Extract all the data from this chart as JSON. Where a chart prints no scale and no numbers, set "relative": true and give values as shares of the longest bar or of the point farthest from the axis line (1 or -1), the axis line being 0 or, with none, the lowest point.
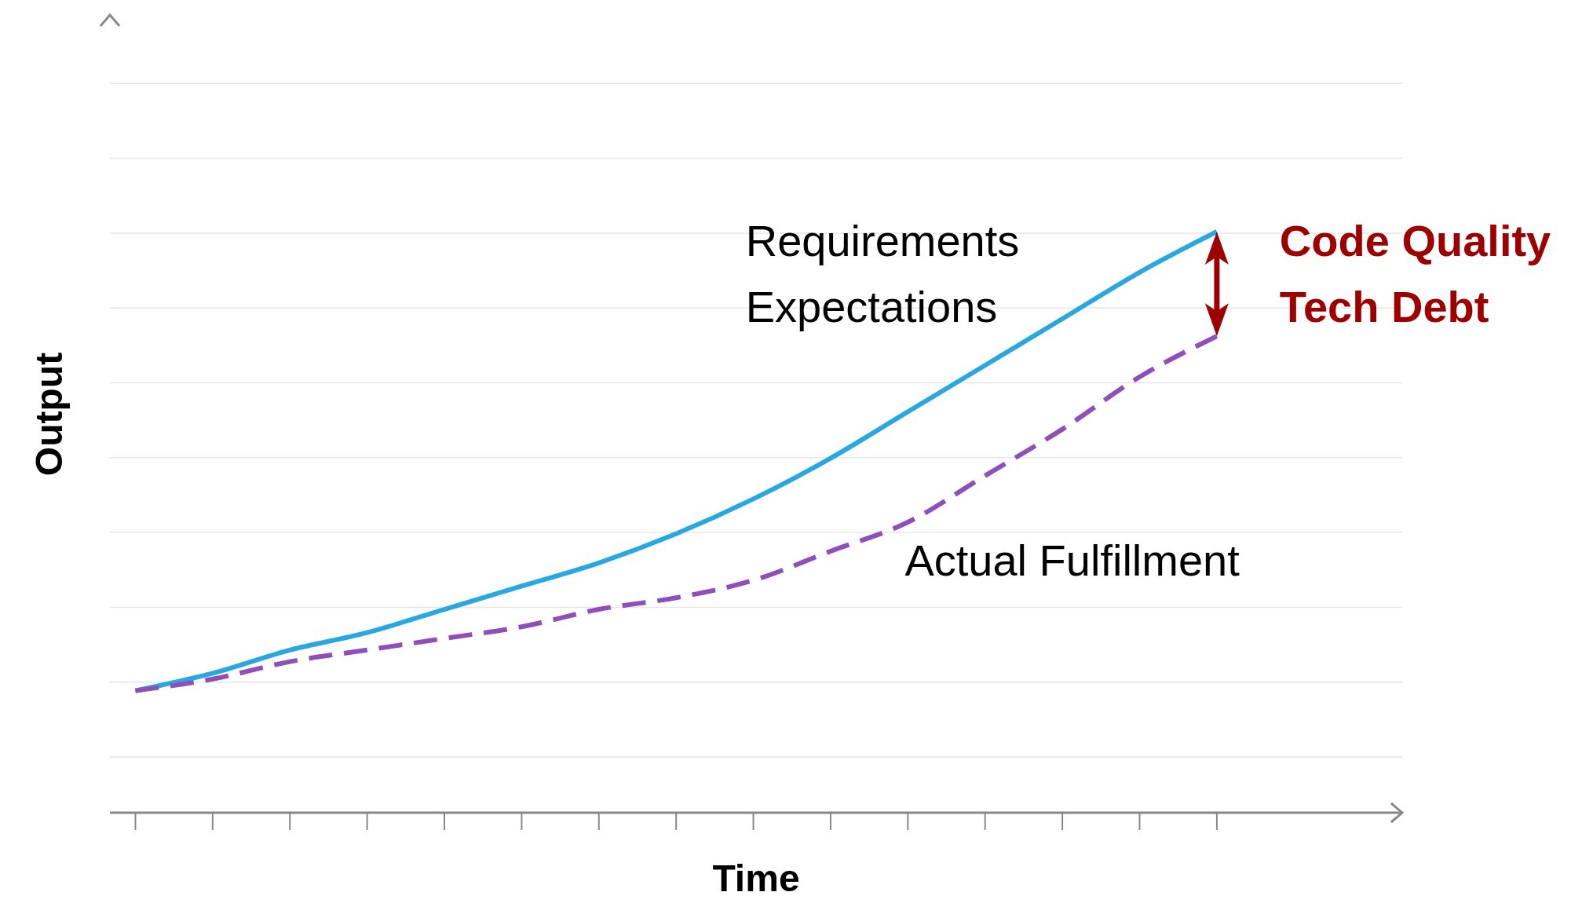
{
  "chart_data": {
    "type": "line",
    "relative": true,
    "xlabel": "Time",
    "ylabel": "Output",
    "categories": [
      null,
      null,
      null,
      null,
      null,
      null,
      null,
      null,
      null,
      null,
      null,
      null,
      null,
      null,
      null
    ],
    "series": [
      {
        "name": "Requirements Expectations",
        "color": "#29a8e0",
        "line_style": "solid",
        "values": [
          0.21,
          0.24,
          0.28,
          0.31,
          0.35,
          0.39,
          0.43,
          0.48,
          0.54,
          0.61,
          0.69,
          0.77,
          0.85,
          0.93,
          1
        ]
      },
      {
        "name": "Actual Fulfillment",
        "color": "#8e4fba",
        "line_style": "dashed",
        "values": [
          0.21,
          0.23,
          0.26,
          0.28,
          0.3,
          0.32,
          0.35,
          0.37,
          0.4,
          0.45,
          0.5,
          0.58,
          0.66,
          0.75,
          0.82
        ]
      }
    ],
    "annotations": [
      "Code Quality",
      "Tech Debt"
    ],
    "grid": "y",
    "legend": false,
    "marker": "none"
  }
}
